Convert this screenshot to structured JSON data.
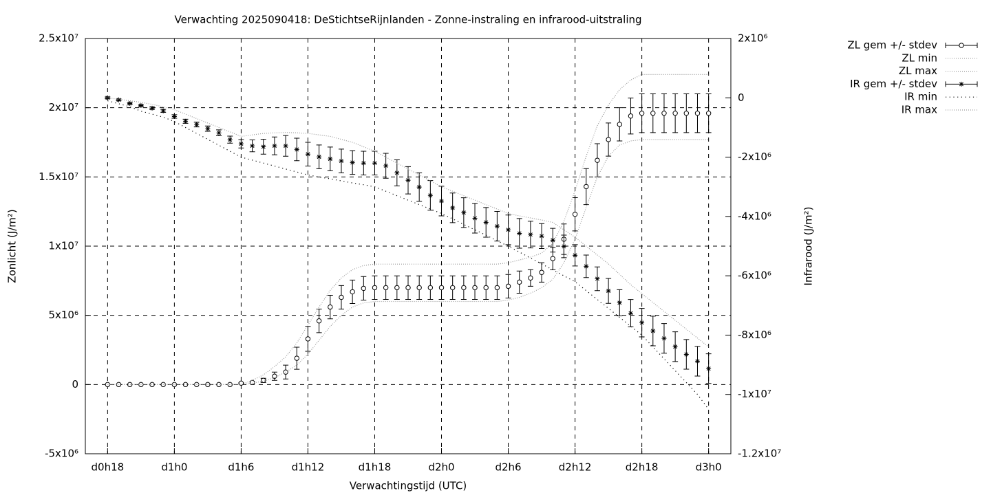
{
  "chart_data": {
    "type": "errorbar-line",
    "title": "Verwachting 2025090418: DeStichtseRijnlanden - Zonne-instraling en infrarood-uitstraling",
    "xlabel": "Verwachtingstijd (UTC)",
    "ylabel": "Zonlicht (J/m²)",
    "y2label": "Infrarood (J/m²)",
    "grid": true,
    "legend": "outside-top-right",
    "xlim": [
      16,
      74
    ],
    "xticks": [
      {
        "value": 18,
        "label": "d0h18"
      },
      {
        "value": 24,
        "label": "d1h0"
      },
      {
        "value": 30,
        "label": "d1h6"
      },
      {
        "value": 36,
        "label": "d1h12"
      },
      {
        "value": 42,
        "label": "d1h18"
      },
      {
        "value": 48,
        "label": "d2h0"
      },
      {
        "value": 54,
        "label": "d2h6"
      },
      {
        "value": 60,
        "label": "d2h12"
      },
      {
        "value": 66,
        "label": "d2h18"
      },
      {
        "value": 72,
        "label": "d3h0"
      }
    ],
    "ylim": [
      -5000000.0,
      25000000.0
    ],
    "yticks": [
      {
        "value": -5000000.0,
        "label": "-5x10⁶"
      },
      0,
      {
        "value": 5000000.0,
        "label": "5x10⁶"
      },
      {
        "value": 10000000.0,
        "label": "1x10⁷"
      },
      {
        "value": 15000000.0,
        "label": "1.5x10⁷"
      },
      {
        "value": 20000000.0,
        "label": "2x10⁷"
      },
      {
        "value": 25000000.0,
        "label": "2.5x10⁷"
      }
    ],
    "y2lim": [
      -12000000.0,
      2000000.0
    ],
    "y2ticks": [
      {
        "value": -12000000.0,
        "label": "-1.2x10⁷"
      },
      {
        "value": -10000000.0,
        "label": "-1x10⁷"
      },
      {
        "value": -8000000.0,
        "label": "-8x10⁶"
      },
      {
        "value": -6000000.0,
        "label": "-6x10⁶"
      },
      {
        "value": -4000000.0,
        "label": "-4x10⁶"
      },
      {
        "value": -2000000.0,
        "label": "-2x10⁶"
      },
      0,
      {
        "value": 2000000.0,
        "label": "2x10⁶"
      }
    ],
    "x": [
      18,
      19,
      20,
      21,
      22,
      23,
      24,
      25,
      26,
      27,
      28,
      29,
      30,
      31,
      32,
      33,
      34,
      35,
      36,
      37,
      38,
      39,
      40,
      41,
      42,
      43,
      44,
      45,
      46,
      47,
      48,
      49,
      50,
      51,
      52,
      53,
      54,
      55,
      56,
      57,
      58,
      59,
      60,
      61,
      62,
      63,
      64,
      65,
      66,
      67,
      68,
      69,
      70,
      71,
      72
    ],
    "series": [
      {
        "name": "ZL gem +/- stdev",
        "color": "#000000",
        "style": "errorbars",
        "marker": "circle",
        "axis": "y",
        "values": [
          0,
          0,
          0,
          0,
          0,
          0,
          0,
          0,
          0,
          0,
          0,
          0,
          100000.0,
          150000.0,
          300000.0,
          600000.0,
          900000.0,
          1900000.0,
          3300000.0,
          4600000.0,
          5600000.0,
          6300000.0,
          6700000.0,
          6950000.0,
          7000000.0,
          7000000.0,
          7000000.0,
          7000000.0,
          7000000.0,
          7000000.0,
          7000000.0,
          7000000.0,
          7000000.0,
          7000000.0,
          7000000.0,
          7000000.0,
          7100000.0,
          7400000.0,
          7700000.0,
          8100000.0,
          9100000.0,
          10500000.0,
          12300000.0,
          14300000.0,
          16200000.0,
          17700000.0,
          18800000.0,
          19400000.0,
          19600000.0,
          19600000.0,
          19600000.0,
          19600000.0,
          19600000.0,
          19600000.0,
          19600000.0
        ],
        "errors": [
          0,
          0,
          0,
          0,
          0,
          0,
          0,
          0,
          0,
          0,
          0,
          0,
          30000.0,
          50000.0,
          150000.0,
          300000.0,
          500000.0,
          800000.0,
          900000.0,
          850000.0,
          850000.0,
          850000.0,
          850000.0,
          850000.0,
          850000.0,
          850000.0,
          850000.0,
          850000.0,
          850000.0,
          850000.0,
          850000.0,
          850000.0,
          850000.0,
          850000.0,
          850000.0,
          850000.0,
          850000.0,
          800000.0,
          600000.0,
          700000.0,
          800000.0,
          1100000.0,
          1200000.0,
          1300000.0,
          1200000.0,
          1200000.0,
          1200000.0,
          1300000.0,
          1400000.0,
          1400000.0,
          1400000.0,
          1400000.0,
          1400000.0,
          1400000.0,
          1400000.0
        ]
      },
      {
        "name": "ZL min",
        "color": "#999999",
        "style": "dotted",
        "axis": "y",
        "values": [
          0,
          0,
          0,
          0,
          0,
          0,
          0,
          0,
          0,
          0,
          0,
          0,
          0,
          100000.0,
          250000.0,
          500000.0,
          900000.0,
          1400000.0,
          2200000.0,
          3200000.0,
          4200000.0,
          5000000.0,
          5600000.0,
          5900000.0,
          6000000.0,
          6000000.0,
          6000000.0,
          6000000.0,
          6000000.0,
          6000000.0,
          6000000.0,
          6000000.0,
          6000000.0,
          6000000.0,
          6000000.0,
          6000000.0,
          6100000.0,
          6300000.0,
          6600000.0,
          7000000.0,
          7600000.0,
          8800000.0,
          10500000.0,
          12800000.0,
          15000000.0,
          16500000.0,
          17300000.0,
          17600000.0,
          17700000.0,
          17700000.0,
          17700000.0,
          17700000.0,
          17700000.0,
          17700000.0,
          17700000.0
        ]
      },
      {
        "name": "ZL max",
        "color": "#999999",
        "style": "dotted",
        "axis": "y",
        "values": [
          0,
          0,
          0,
          0,
          0,
          0,
          0,
          0,
          0,
          0,
          0,
          0,
          0,
          300000.0,
          700000.0,
          1300000.0,
          2000000.0,
          3000000.0,
          4300000.0,
          5600000.0,
          6800000.0,
          7700000.0,
          8300000.0,
          8600000.0,
          8700000.0,
          8700000.0,
          8700000.0,
          8700000.0,
          8700000.0,
          8700000.0,
          8700000.0,
          8700000.0,
          8700000.0,
          8700000.0,
          8700000.0,
          8700000.0,
          8800000.0,
          9000000.0,
          9200000.0,
          9500000.0,
          10200000.0,
          11800000.0,
          14000000.0,
          16500000.0,
          18700000.0,
          20200000.0,
          21300000.0,
          22000000.0,
          22400000.0,
          22400000.0,
          22400000.0,
          22400000.0,
          22400000.0,
          22400000.0,
          22400000.0
        ]
      },
      {
        "name": "IR gem +/- stdev",
        "color": "#000000",
        "style": "errorbars",
        "marker": "star",
        "axis": "y2",
        "values": [
          0,
          -70000.0,
          -190000.0,
          -260000.0,
          -350000.0,
          -440000.0,
          -630000.0,
          -790000.0,
          -900000.0,
          -1040000.0,
          -1180000.0,
          -1410000.0,
          -1550000.0,
          -1620000.0,
          -1650000.0,
          -1620000.0,
          -1620000.0,
          -1740000.0,
          -1900000.0,
          -1990000.0,
          -2060000.0,
          -2130000.0,
          -2180000.0,
          -2200000.0,
          -2200000.0,
          -2290000.0,
          -2530000.0,
          -2780000.0,
          -3010000.0,
          -3290000.0,
          -3480000.0,
          -3710000.0,
          -3870000.0,
          -4060000.0,
          -4200000.0,
          -4330000.0,
          -4450000.0,
          -4570000.0,
          -4610000.0,
          -4660000.0,
          -4800000.0,
          -5010000.0,
          -5310000.0,
          -5680000.0,
          -6100000.0,
          -6510000.0,
          -6910000.0,
          -7260000.0,
          -7580000.0,
          -7860000.0,
          -8110000.0,
          -8390000.0,
          -8650000.0,
          -8880000.0,
          -9130000.0
        ],
        "errors": [
          30000.0,
          30000.0,
          30000.0,
          30000.0,
          40000.0,
          50000.0,
          60000.0,
          70000.0,
          80000.0,
          90000.0,
          100000.0,
          120000.0,
          140000.0,
          200000.0,
          250000.0,
          300000.0,
          350000.0,
          380000.0,
          400000.0,
          400000.0,
          400000.0,
          400000.0,
          400000.0,
          400000.0,
          400000.0,
          420000.0,
          440000.0,
          460000.0,
          480000.0,
          500000.0,
          500000.0,
          500000.0,
          500000.0,
          500000.0,
          500000.0,
          500000.0,
          500000.0,
          500000.0,
          450000.0,
          420000.0,
          400000.0,
          380000.0,
          360000.0,
          380000.0,
          400000.0,
          420000.0,
          440000.0,
          460000.0,
          480000.0,
          500000.0,
          500000.0,
          500000.0,
          500000.0,
          500000.0,
          500000.0
        ]
      },
      {
        "name": "IR min",
        "color": "#000000",
        "style": "sparse-dots",
        "axis": "y2",
        "values": [
          -100000.0,
          -200000.0,
          -300000.0,
          -450000.0,
          -550000.0,
          -650000.0,
          -800000.0,
          -1000000.0,
          -1200000.0,
          -1400000.0,
          -1600000.0,
          -1800000.0,
          -2000000.0,
          -2100000.0,
          -2200000.0,
          -2300000.0,
          -2400000.0,
          -2500000.0,
          -2600000.0,
          -2670000.0,
          -2730000.0,
          -2800000.0,
          -2870000.0,
          -2930000.0,
          -3000000.0,
          -3150000.0,
          -3300000.0,
          -3450000.0,
          -3600000.0,
          -3750000.0,
          -3900000.0,
          -4080000.0,
          -4270000.0,
          -4450000.0,
          -4630000.0,
          -4820000.0,
          -5000000.0,
          -5200000.0,
          -5400000.0,
          -5600000.0,
          -5800000.0,
          -6000000.0,
          -6200000.0,
          -6500000.0,
          -6800000.0,
          -7100000.0,
          -7400000.0,
          -7700000.0,
          -8000000.0,
          -8400000.0,
          -8800000.0,
          -9200000.0,
          -9600000.0,
          -10000000.0,
          -10500000.0
        ]
      },
      {
        "name": "IR max",
        "color": "#999999",
        "style": "dotted",
        "axis": "y2",
        "values": [
          0,
          -50000.0,
          -100000.0,
          -150000.0,
          -220000.0,
          -300000.0,
          -400000.0,
          -550000.0,
          -700000.0,
          -850000.0,
          -1000000.0,
          -1150000.0,
          -1300000.0,
          -1250000.0,
          -1200000.0,
          -1180000.0,
          -1170000.0,
          -1180000.0,
          -1200000.0,
          -1250000.0,
          -1300000.0,
          -1400000.0,
          -1500000.0,
          -1650000.0,
          -1800000.0,
          -2000000.0,
          -2200000.0,
          -2400000.0,
          -2600000.0,
          -2800000.0,
          -3000000.0,
          -3150000.0,
          -3300000.0,
          -3450000.0,
          -3600000.0,
          -3750000.0,
          -3900000.0,
          -3980000.0,
          -4050000.0,
          -4120000.0,
          -4200000.0,
          -4450000.0,
          -4700000.0,
          -5000000.0,
          -5300000.0,
          -5600000.0,
          -5950000.0,
          -6300000.0,
          -6600000.0,
          -6900000.0,
          -7200000.0,
          -7500000.0,
          -7800000.0,
          -8100000.0,
          -8400000.0
        ]
      }
    ]
  }
}
